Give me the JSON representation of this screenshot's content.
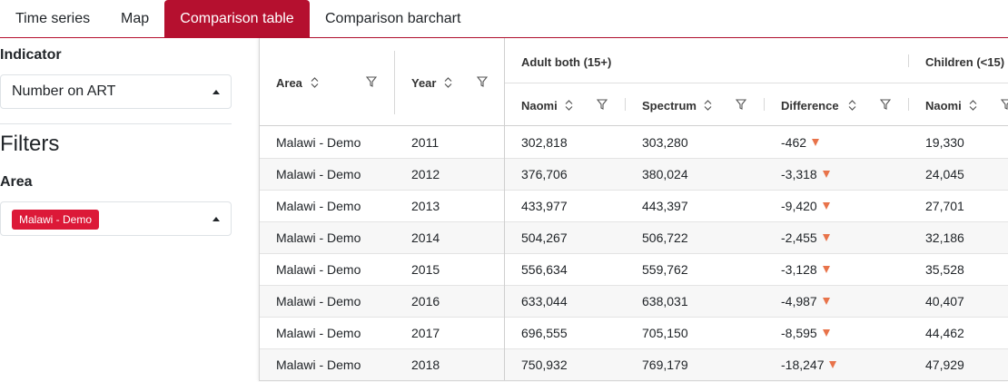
{
  "tabs": [
    {
      "label": "Time series",
      "active": false
    },
    {
      "label": "Map",
      "active": false
    },
    {
      "label": "Comparison table",
      "active": true
    },
    {
      "label": "Comparison barchart",
      "active": false
    }
  ],
  "sidebar": {
    "indicator_heading": "Indicator",
    "indicator_value": "Number on ART",
    "filters_title": "Filters",
    "area_heading": "Area",
    "area_chip": "Malawi - Demo"
  },
  "table": {
    "columns": {
      "area": "Area",
      "year": "Year",
      "group_adult": "Adult both (15+)",
      "group_children": "Children (<15)",
      "naomi": "Naomi",
      "spectrum": "Spectrum",
      "difference": "Difference",
      "naomi_children": "Naomi"
    },
    "rows": [
      {
        "area": "Malawi - Demo",
        "year": "2011",
        "naomi": "302,818",
        "spectrum": "303,280",
        "difference": "-462",
        "naomi_children": "19,330"
      },
      {
        "area": "Malawi - Demo",
        "year": "2012",
        "naomi": "376,706",
        "spectrum": "380,024",
        "difference": "-3,318",
        "naomi_children": "24,045"
      },
      {
        "area": "Malawi - Demo",
        "year": "2013",
        "naomi": "433,977",
        "spectrum": "443,397",
        "difference": "-9,420",
        "naomi_children": "27,701"
      },
      {
        "area": "Malawi - Demo",
        "year": "2014",
        "naomi": "504,267",
        "spectrum": "506,722",
        "difference": "-2,455",
        "naomi_children": "32,186"
      },
      {
        "area": "Malawi - Demo",
        "year": "2015",
        "naomi": "556,634",
        "spectrum": "559,762",
        "difference": "-3,128",
        "naomi_children": "35,528"
      },
      {
        "area": "Malawi - Demo",
        "year": "2016",
        "naomi": "633,044",
        "spectrum": "638,031",
        "difference": "-4,987",
        "naomi_children": "40,407"
      },
      {
        "area": "Malawi - Demo",
        "year": "2017",
        "naomi": "696,555",
        "spectrum": "705,150",
        "difference": "-8,595",
        "naomi_children": "44,462"
      },
      {
        "area": "Malawi - Demo",
        "year": "2018",
        "naomi": "750,932",
        "spectrum": "769,179",
        "difference": "-18,247",
        "naomi_children": "47,929"
      }
    ]
  },
  "colors": {
    "accent": "#b5102f",
    "chip": "#dc1938",
    "down_arrow": "#e8734a"
  },
  "icons": {
    "sort": "sort-icon",
    "filter": "filter-icon",
    "down_indicator": "triangle-down-icon"
  }
}
